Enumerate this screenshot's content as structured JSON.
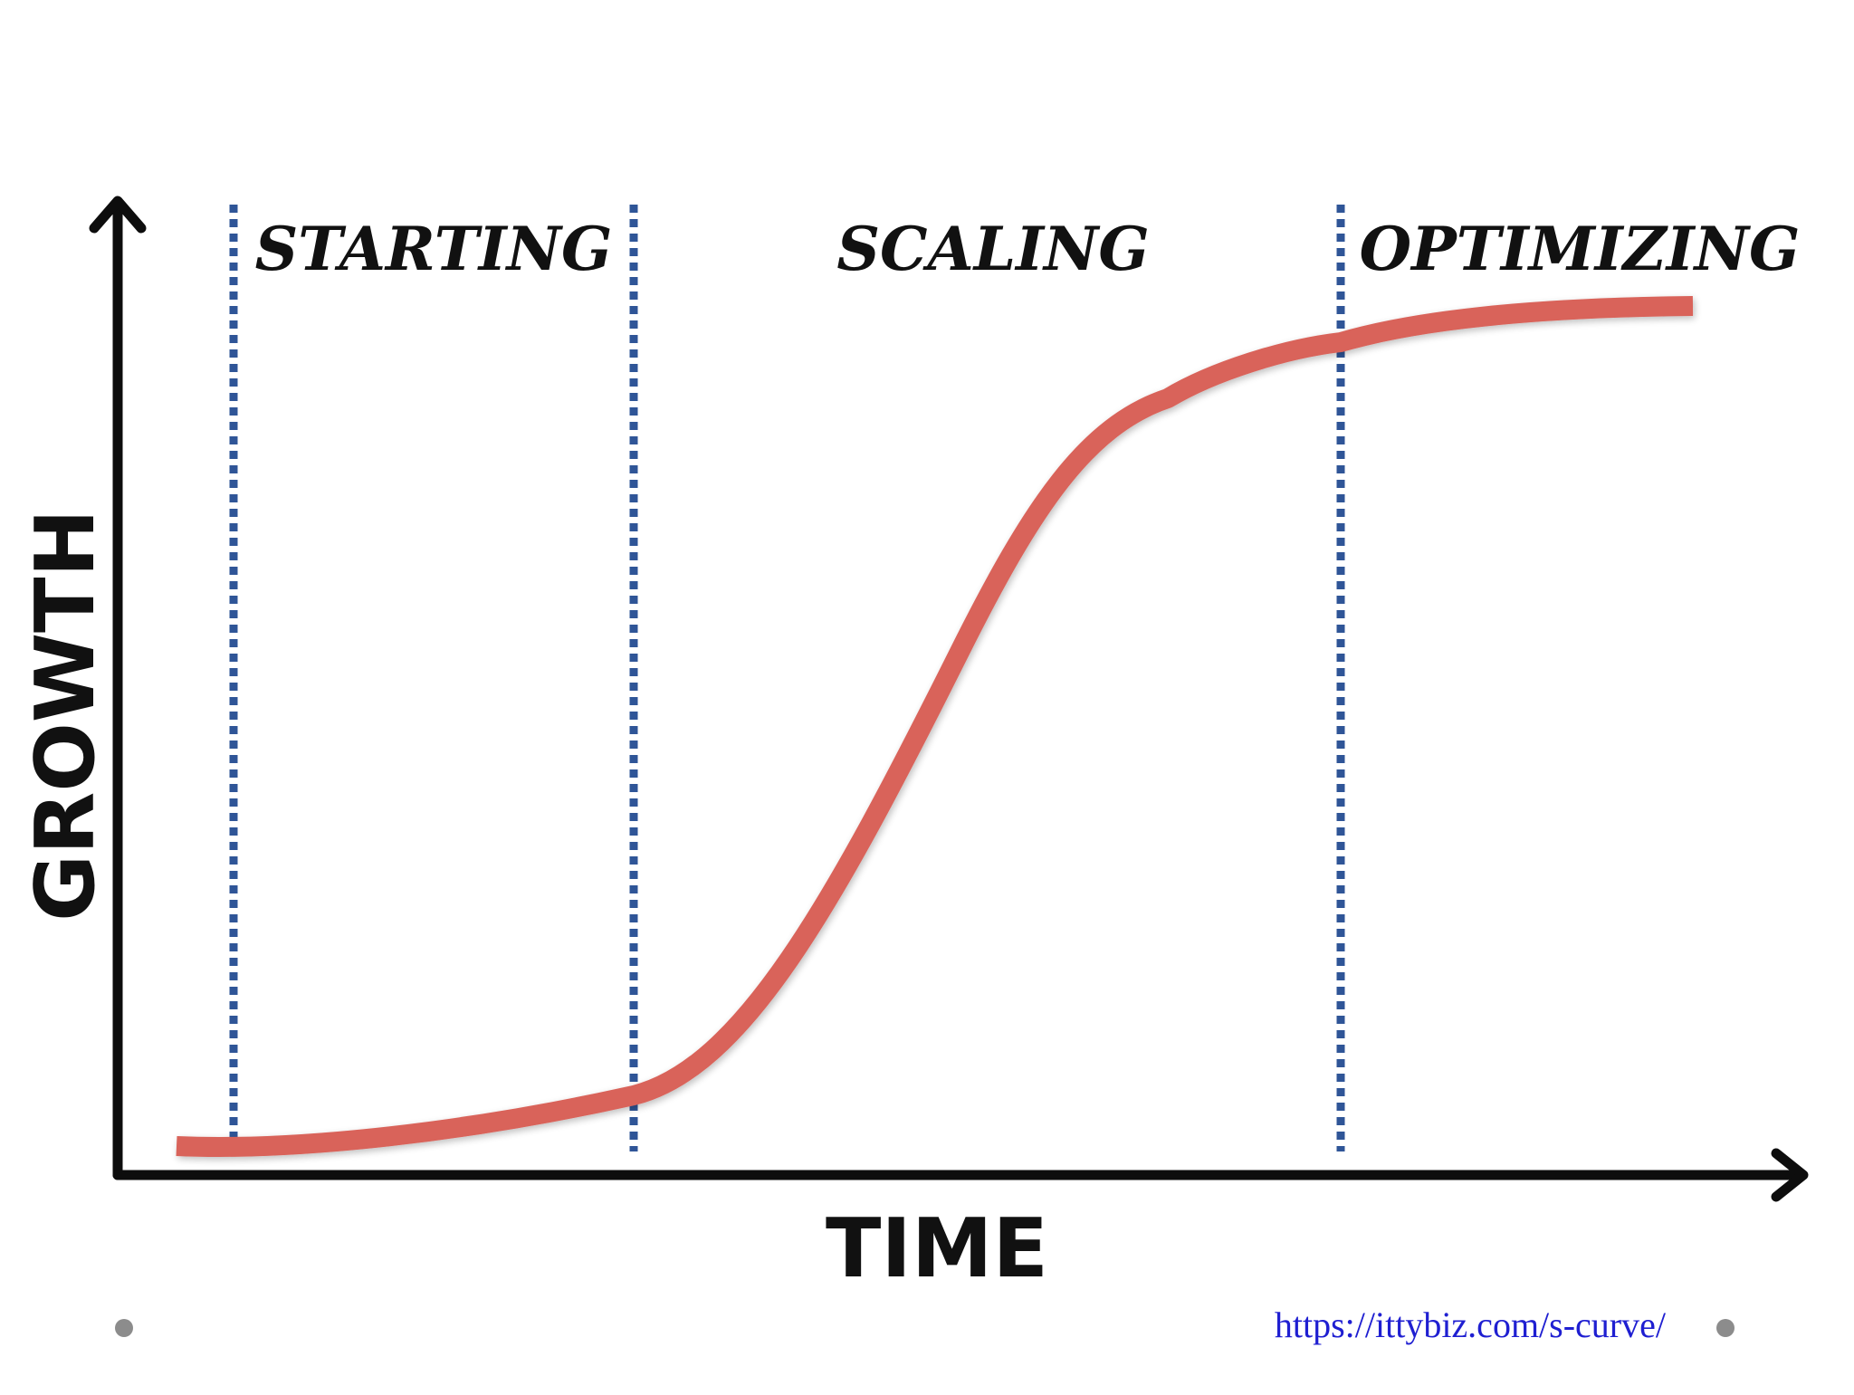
{
  "diagram": {
    "phases": [
      "STARTING",
      "SCALING",
      "OPTIMIZING"
    ],
    "x_axis_label": "TIME",
    "y_axis_label": "GROWTH"
  },
  "footer": {
    "source_link": "https://ittybiz.com/s-curve/"
  },
  "colors": {
    "curve": "#d9635a",
    "divider": "#2f5597",
    "axis": "#0d0d0d",
    "link": "#1f1fd1",
    "dot": "#8c8c8c"
  }
}
